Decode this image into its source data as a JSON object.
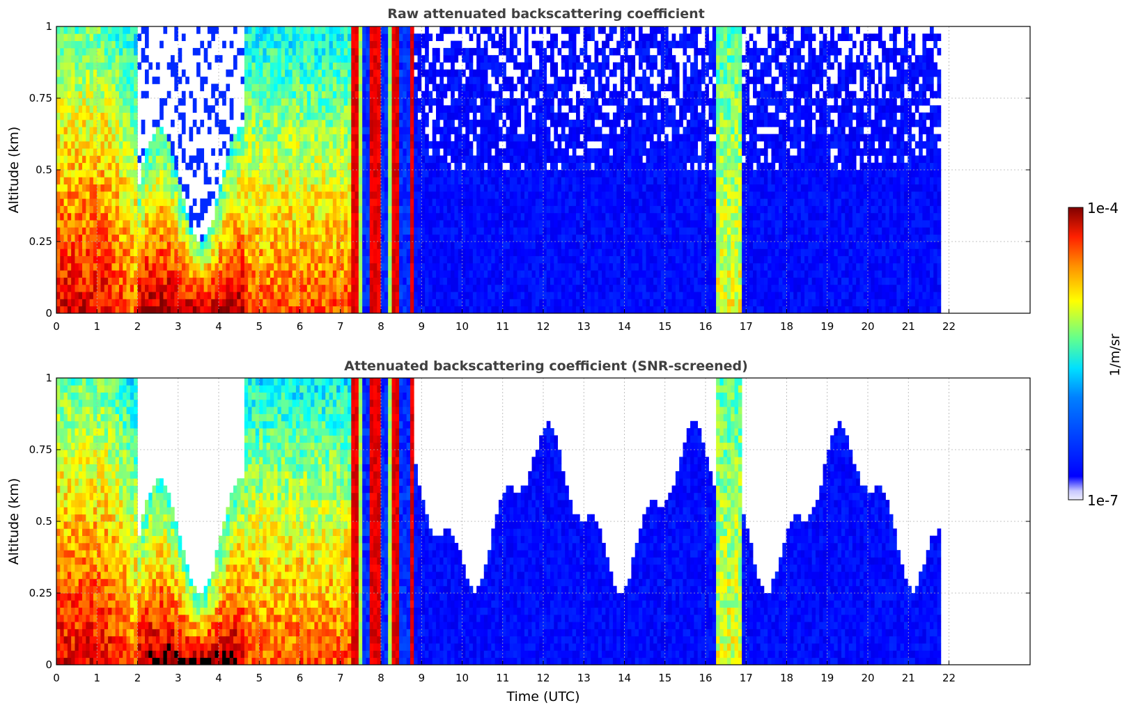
{
  "figure": {
    "colorbar": {
      "max_label": "1e-4",
      "min_label": "1e-7",
      "unit_label": "1/m/sr",
      "colormap": "jet",
      "scale": "log",
      "vmin": 1e-07,
      "vmax": 0.0001
    }
  },
  "chart_data": [
    {
      "type": "heatmap",
      "title": "Raw attenuated backscattering coefficient",
      "xlabel": "",
      "ylabel": "Altitude (km)",
      "xlim": [
        0,
        24
      ],
      "ylim": [
        0,
        1
      ],
      "x_ticks": [
        "0",
        "1",
        "2",
        "3",
        "4",
        "5",
        "6",
        "7",
        "8",
        "9",
        "10",
        "11",
        "12",
        "13",
        "14",
        "15",
        "16",
        "17",
        "18",
        "19",
        "20",
        "21",
        "22"
      ],
      "y_ticks": [
        "0",
        "0.25",
        "0.5",
        "0.75",
        "1"
      ],
      "grid": true,
      "data_end_time": 21.8,
      "regimes": [
        {
          "from": 0.0,
          "to": 2.0,
          "description": "red to yellow, dense, decreasing with altitude",
          "log_value_surface": -4.3,
          "log_value_top": -5.6
        },
        {
          "from": 2.0,
          "to": 4.6,
          "description": "red near surface, clear above ~0.6 km",
          "log_value_surface": -4.1,
          "top_km": 0.6
        },
        {
          "from": 4.6,
          "to": 7.3,
          "description": "orange/yellow, cyan aloft",
          "log_value_surface": -4.6,
          "log_value_top": -5.8
        },
        {
          "from": 7.3,
          "to": 8.8,
          "description": "mixed streaks of red, green and blue"
        },
        {
          "from": 8.8,
          "to": 21.8,
          "description": "blue background with sparse noise above 0.5 km",
          "log_value": -6.6
        },
        {
          "from": 16.3,
          "to": 16.9,
          "description": "green/yellow vertical streaks",
          "log_value": -5.5
        }
      ]
    },
    {
      "type": "heatmap",
      "title": "Attenuated backscattering coefficient (SNR-screened)",
      "xlabel": "Time (UTC)",
      "ylabel": "Altitude (km)",
      "xlim": [
        0,
        24
      ],
      "ylim": [
        0,
        1
      ],
      "x_ticks": [
        "0",
        "1",
        "2",
        "3",
        "4",
        "5",
        "6",
        "7",
        "8",
        "9",
        "10",
        "11",
        "12",
        "13",
        "14",
        "15",
        "16",
        "17",
        "18",
        "19",
        "20",
        "21",
        "22"
      ],
      "y_ticks": [
        "0",
        "0.25",
        "0.5",
        "0.75",
        "1"
      ],
      "grid": true,
      "data_end_time": 21.8,
      "regimes": [
        {
          "from": 0.0,
          "to": 2.0,
          "description": "red to yellow, black saturated streaks",
          "log_value_surface": -4.3,
          "log_value_top": -5.6
        },
        {
          "from": 2.0,
          "to": 4.6,
          "description": "red near surface, screened above ~0.6 km",
          "log_value_surface": -4.1,
          "top_km": 0.6
        },
        {
          "from": 4.6,
          "to": 7.3,
          "description": "orange/yellow, green aloft",
          "log_value_surface": -4.6,
          "log_value_top": -5.8
        },
        {
          "from": 7.3,
          "to": 8.8,
          "description": "mixed streaks"
        },
        {
          "from": 8.8,
          "to": 21.8,
          "description": "blue, screened white above ~0.4 to 0.8 km",
          "log_value": -6.6,
          "top_km": 0.75
        },
        {
          "from": 16.3,
          "to": 16.9,
          "description": "green/yellow vertical streaks",
          "log_value": -5.5
        }
      ]
    }
  ]
}
